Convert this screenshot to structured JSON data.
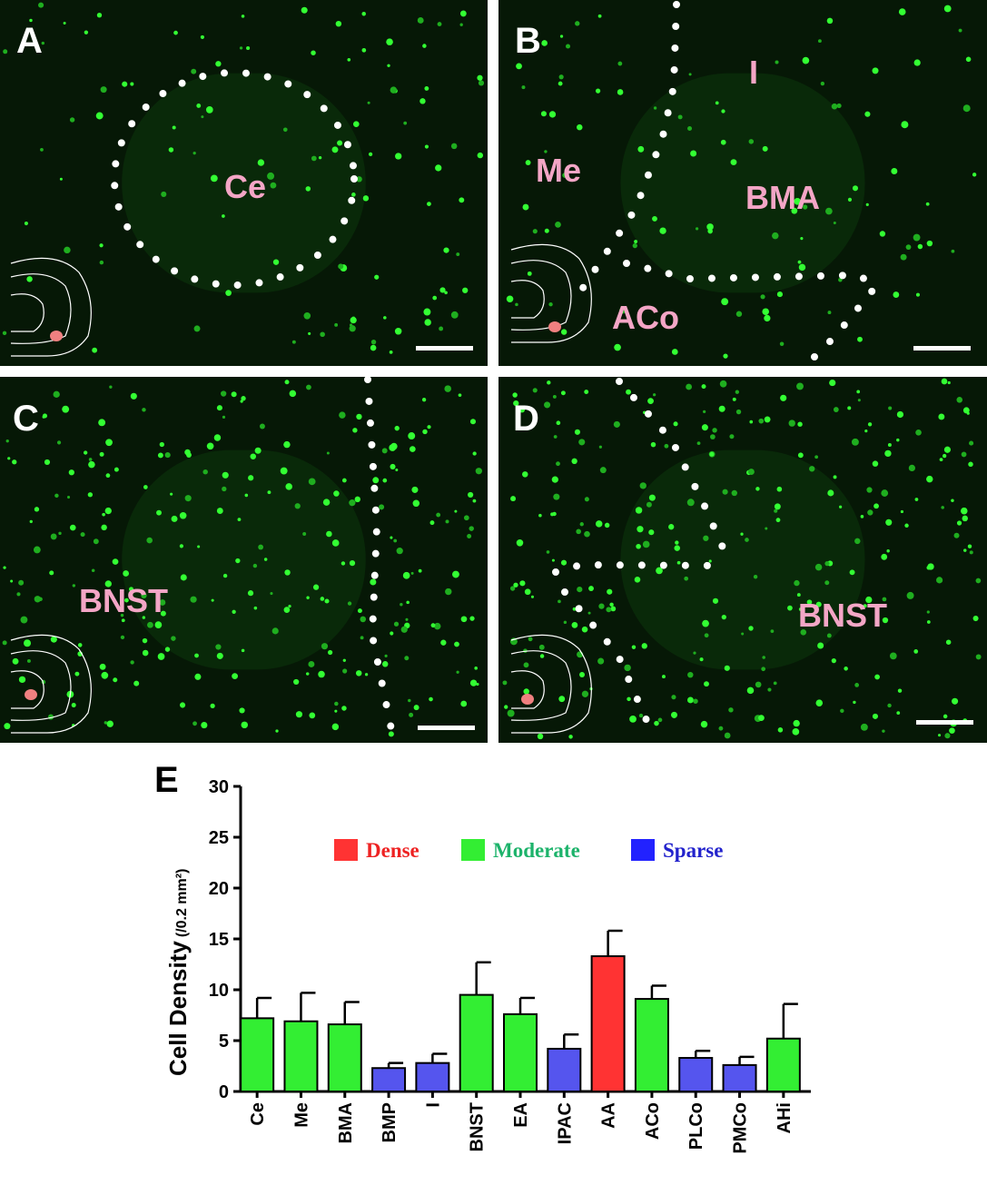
{
  "panels": [
    {
      "label": "A",
      "regions": [
        "Ce"
      ]
    },
    {
      "label": "B",
      "regions": [
        "I",
        "Me",
        "BMA",
        "ACo"
      ]
    },
    {
      "label": "C",
      "regions": [
        "BNST"
      ]
    },
    {
      "label": "D",
      "regions": [
        "BNST"
      ]
    }
  ],
  "chart_data": {
    "type": "bar",
    "label": "E",
    "ylabel": "Cell Density",
    "ylabel_unit": "(/0.2 mm²)",
    "categories": [
      "Ce",
      "Me",
      "BMA",
      "BMP",
      "I",
      "BNST",
      "EA",
      "IPAC",
      "AA",
      "ACo",
      "PLCo",
      "PMCo",
      "AHi"
    ],
    "values": [
      7.2,
      6.9,
      6.6,
      2.3,
      2.8,
      9.5,
      7.6,
      4.2,
      13.3,
      9.1,
      3.3,
      2.6,
      5.2
    ],
    "errors": [
      2.0,
      2.8,
      2.2,
      0.5,
      0.9,
      3.2,
      1.6,
      1.4,
      2.5,
      1.3,
      0.7,
      0.8,
      3.4
    ],
    "colors": [
      "#33ee33",
      "#33ee33",
      "#33ee33",
      "#5555ee",
      "#5555ee",
      "#33ee33",
      "#33ee33",
      "#5555ee",
      "#ff3333",
      "#33ee33",
      "#5555ee",
      "#5555ee",
      "#33ee33"
    ],
    "legend": [
      {
        "name": "Dense",
        "color": "#ff3333",
        "text_color": "#ee2222"
      },
      {
        "name": "Moderate",
        "color": "#33ee33",
        "text_color": "#1db36b"
      },
      {
        "name": "Sparse",
        "color": "#2222ff",
        "text_color": "#2222cc"
      }
    ],
    "ylim": [
      0,
      30
    ],
    "yticks": [
      0,
      5,
      10,
      15,
      20,
      25,
      30
    ]
  }
}
